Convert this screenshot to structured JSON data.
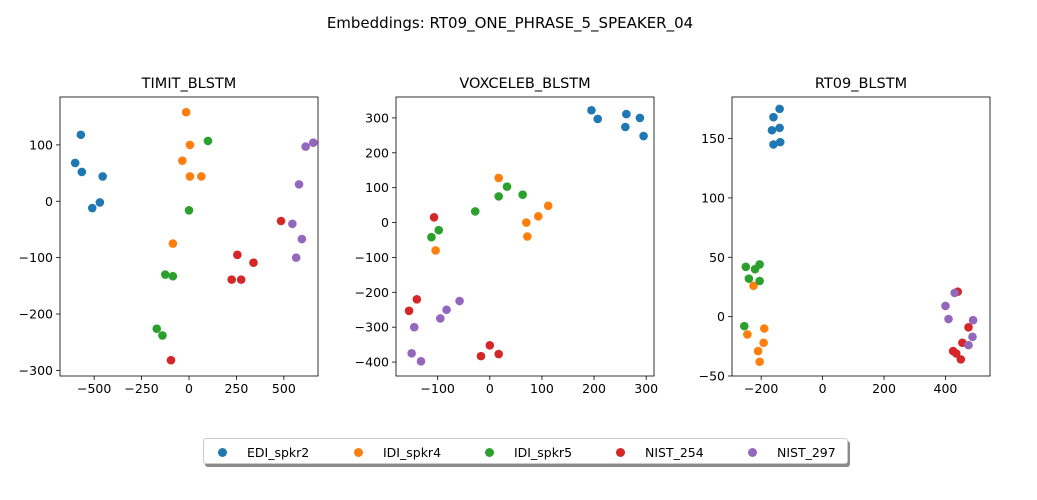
{
  "figure": {
    "suptitle": "Embeddings: RT09_ONE_PHRASE_5_SPEAKER_04"
  },
  "colors": {
    "EDI_spkr2": "#1f77b4",
    "IDI_spkr4": "#ff7f0e",
    "IDI_spkr5": "#2ca02c",
    "NIST_254": "#d62728",
    "NIST_297": "#9467bd"
  },
  "legend": {
    "entries": [
      "EDI_spkr2",
      "IDI_spkr4",
      "IDI_spkr5",
      "NIST_254",
      "NIST_297"
    ],
    "marker": "circle"
  },
  "chart_data": [
    {
      "type": "scatter",
      "title": "TIMIT_BLSTM",
      "xlim": [
        -680,
        680
      ],
      "ylim": [
        -310,
        185
      ],
      "xticks": [
        -500,
        -250,
        0,
        250,
        500
      ],
      "yticks": [
        -300,
        -200,
        -100,
        0,
        100
      ],
      "series": [
        {
          "name": "EDI_spkr2",
          "x": [
            -570,
            -600,
            -565,
            -510,
            -470,
            -455
          ],
          "y": [
            118,
            68,
            52,
            -12,
            -2,
            44
          ]
        },
        {
          "name": "IDI_spkr4",
          "x": [
            -15,
            5,
            -35,
            5,
            65,
            -85
          ],
          "y": [
            158,
            100,
            72,
            44,
            44,
            -75
          ]
        },
        {
          "name": "IDI_spkr5",
          "x": [
            100,
            0,
            -125,
            -85,
            -170,
            -140
          ],
          "y": [
            107,
            -16,
            -130,
            -133,
            -226,
            -238
          ]
        },
        {
          "name": "NIST_254",
          "x": [
            485,
            255,
            340,
            225,
            275,
            -95
          ],
          "y": [
            -35,
            -95,
            -109,
            -139,
            -139,
            -282
          ]
        },
        {
          "name": "NIST_297",
          "x": [
            655,
            615,
            580,
            545,
            595,
            565
          ],
          "y": [
            104,
            97,
            30,
            -40,
            -67,
            -100
          ]
        }
      ]
    },
    {
      "type": "scatter",
      "title": "VOXCELEB_BLSTM",
      "xlim": [
        -180,
        315
      ],
      "ylim": [
        -440,
        360
      ],
      "xticks": [
        -100,
        0,
        100,
        200,
        300
      ],
      "yticks": [
        -400,
        -300,
        -200,
        -100,
        0,
        100,
        200,
        300
      ],
      "series": [
        {
          "name": "EDI_spkr2",
          "x": [
            195,
            207,
            262,
            260,
            288,
            295
          ],
          "y": [
            322,
            297,
            311,
            274,
            300,
            248
          ]
        },
        {
          "name": "IDI_spkr4",
          "x": [
            17,
            112,
            70,
            93,
            72,
            -104
          ],
          "y": [
            128,
            48,
            0,
            18,
            -40,
            -80
          ]
        },
        {
          "name": "IDI_spkr5",
          "x": [
            -28,
            33,
            17,
            63,
            -98,
            -112
          ],
          "y": [
            32,
            103,
            75,
            80,
            -22,
            -42
          ]
        },
        {
          "name": "NIST_254",
          "x": [
            -107,
            -140,
            -155,
            0,
            -17,
            17
          ],
          "y": [
            15,
            -220,
            -253,
            -352,
            -383,
            -377
          ]
        },
        {
          "name": "NIST_297",
          "x": [
            -58,
            -83,
            -95,
            -145,
            -150,
            -132
          ],
          "y": [
            -225,
            -250,
            -275,
            -300,
            -375,
            -398
          ]
        }
      ]
    },
    {
      "type": "scatter",
      "title": "RT09_BLSTM",
      "xlim": [
        -295,
        545
      ],
      "ylim": [
        -50,
        185
      ],
      "xticks": [
        -200,
        0,
        200,
        400
      ],
      "yticks": [
        -50,
        0,
        50,
        100,
        150
      ],
      "series": [
        {
          "name": "EDI_spkr2",
          "x": [
            -140,
            -160,
            -165,
            -140,
            -160,
            -138
          ],
          "y": [
            175,
            168,
            157,
            159,
            145,
            147
          ]
        },
        {
          "name": "IDI_spkr4",
          "x": [
            -225,
            -190,
            -245,
            -192,
            -210,
            -205
          ],
          "y": [
            26,
            -10,
            -15,
            -22,
            -29,
            -38
          ]
        },
        {
          "name": "IDI_spkr5",
          "x": [
            -250,
            -220,
            -205,
            -240,
            -205,
            -255
          ],
          "y": [
            42,
            40,
            44,
            32,
            30,
            -8
          ]
        },
        {
          "name": "NIST_254",
          "x": [
            440,
            475,
            455,
            425,
            435,
            450
          ],
          "y": [
            21,
            -9,
            -22,
            -29,
            -31,
            -36
          ]
        },
        {
          "name": "NIST_297",
          "x": [
            430,
            400,
            410,
            490,
            488,
            475
          ],
          "y": [
            20,
            9,
            -2,
            -3,
            -17,
            -24
          ]
        }
      ]
    }
  ]
}
